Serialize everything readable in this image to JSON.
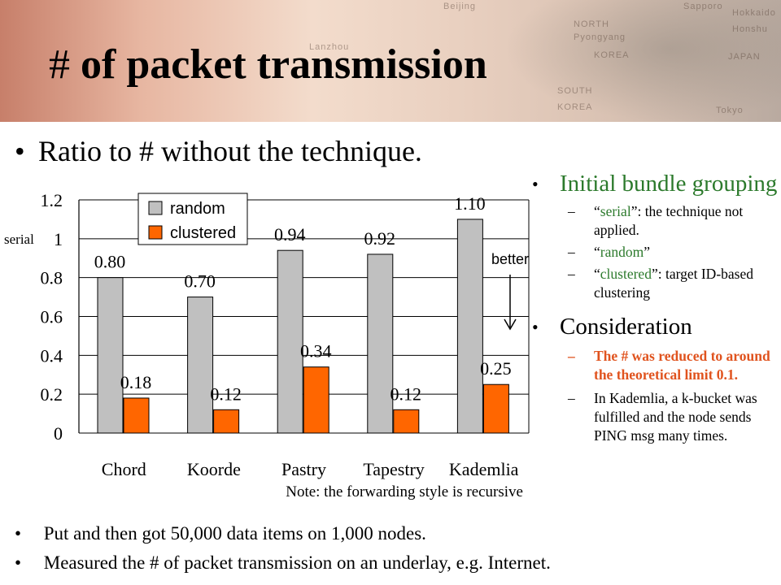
{
  "slide": {
    "title_hash": "#",
    "title_rest": "of packet transmission",
    "top_bullet": "Ratio to # without the technique."
  },
  "map_labels": [
    "Beijing",
    "NORTH",
    "Pyongyang",
    "KOREA",
    "JAPAN",
    "SOUTH",
    "KOREA",
    "Lanzhou",
    "Tokyo",
    "Sapporo",
    "Hokkaido",
    "Honshu"
  ],
  "chart_data": {
    "type": "bar",
    "categories": [
      "Chord",
      "Koorde",
      "Pastry",
      "Tapestry",
      "Kademlia"
    ],
    "series": [
      {
        "name": "random",
        "values": [
          0.8,
          0.7,
          0.94,
          0.92,
          1.1
        ],
        "labels": [
          "0.80",
          "0.70",
          "0.94",
          "0.92",
          "1.10"
        ],
        "color": "#c0c0c0"
      },
      {
        "name": "clustered",
        "values": [
          0.18,
          0.12,
          0.34,
          0.12,
          0.25
        ],
        "labels": [
          "0.18",
          "0.12",
          "0.34",
          "0.12",
          "0.25"
        ],
        "color": "#ff6600"
      }
    ],
    "y_ticks": [
      "0",
      "0.2",
      "0.4",
      "0.6",
      "0.8",
      "1",
      "1.2"
    ],
    "ylim": [
      0,
      1.2
    ],
    "grid": true,
    "legend_position": "top-left",
    "reference_label": "serial",
    "reference_value": 1.0,
    "annotation": "better",
    "note": "Note: the forwarding style is recursive"
  },
  "right_panel": {
    "head1": "Initial bundle grouping",
    "sub1_quote_open": "“",
    "sub1_word": "serial",
    "sub1_rest": "”: the technique not applied.",
    "sub2_quote_open": "“",
    "sub2_word": "random",
    "sub2_rest": "”",
    "sub3_quote_open": "“",
    "sub3_word": "clustered",
    "sub3_rest": "”: target ID-based clustering",
    "head2": "Consideration",
    "sub4": "The # was reduced to around the theoretical limit 0.1.",
    "sub5": "In Kademlia, a k-bucket was fulfilled and the node sends PING msg many times.",
    "dash": "–",
    "bullet": "•"
  },
  "bottom": {
    "bullet1": "Put and then got 50,000 data items on 1,000 nodes.",
    "bullet2": "Measured the # of packet transmission on an underlay, e.g. Internet."
  },
  "colors": {
    "accent_green": "#2c7a2c",
    "highlight_orange": "#e0531e",
    "random_bar": "#c0c0c0",
    "clustered_bar": "#ff6600"
  }
}
